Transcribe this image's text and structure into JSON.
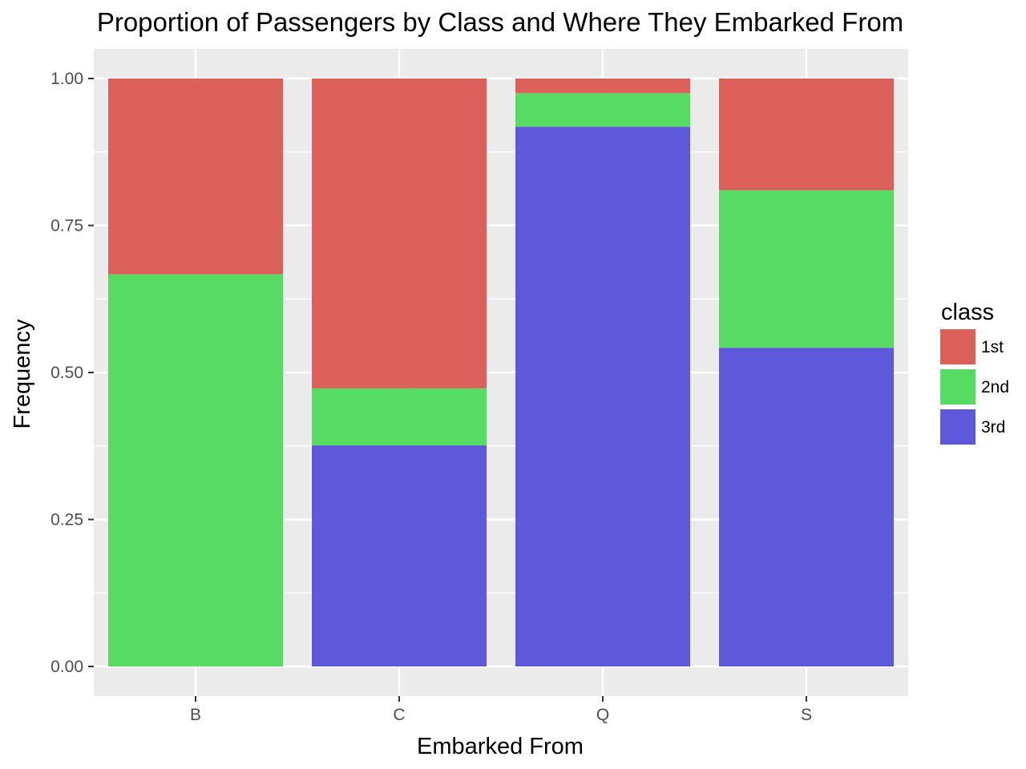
{
  "chart_data": {
    "type": "bar",
    "stacked": true,
    "title": "Proportion of Passengers by Class and Where They Embarked From",
    "xlabel": "Embarked From",
    "ylabel": "Frequency",
    "categories": [
      "B",
      "C",
      "Q",
      "S"
    ],
    "ylim": [
      0,
      1
    ],
    "y_ticks": [
      "0.00",
      "0.25",
      "0.50",
      "0.75",
      "1.00"
    ],
    "grid": true,
    "legend": {
      "title": "class",
      "position": "right"
    },
    "series": [
      {
        "name": "3rd",
        "color": "#5e58db",
        "values": [
          0.0,
          0.376,
          0.918,
          0.542
        ]
      },
      {
        "name": "2nd",
        "color": "#56dc62",
        "values": [
          0.667,
          0.097,
          0.057,
          0.268
        ]
      },
      {
        "name": "1st",
        "color": "#dc605a",
        "values": [
          0.333,
          0.527,
          0.025,
          0.19
        ]
      }
    ]
  }
}
